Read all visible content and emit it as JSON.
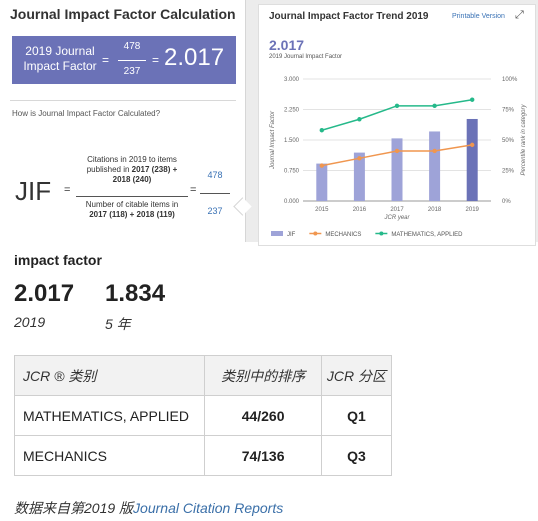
{
  "calc_card": {
    "title": "Journal Impact Factor Calculation",
    "box_label": "2019 Journal Impact Factor",
    "box_numerator": "478",
    "box_denominator": "237",
    "box_result": "2.017",
    "eq_sign": "=",
    "how_text": "How is Journal Impact Factor Calculated?",
    "jif_label": "JIF",
    "fraction_top": {
      "line1": "Citations in 2019 to items",
      "line2_pre": "published in ",
      "line2_bold": "2017 (238) +",
      "line3_bold": "2018 (240)"
    },
    "fraction_bottom": {
      "line1": "Number of citable items in",
      "line2_bold": "2017 (118) + 2018 (119)"
    },
    "side_numerator": "478",
    "side_denominator": "237"
  },
  "trend_card": {
    "title": "Journal Impact Factor Trend 2019",
    "printable": "Printable Version",
    "value": "2.017",
    "subtitle": "2019 Journal Impact Factor",
    "expand_icon": "expand-icon"
  },
  "chart_data": {
    "type": "bar",
    "categories": [
      "2015",
      "2016",
      "2017",
      "2018",
      "2019"
    ],
    "ylabel": "Journal Impact Factor",
    "y2label": "Percentile rank in category",
    "xlabel": "JCR year",
    "ylim": [
      0,
      3.0
    ],
    "y2lim": [
      0,
      100
    ],
    "y_ticks": [
      "0.000",
      "0.750",
      "1.500",
      "2.250",
      "3.000"
    ],
    "y2_ticks": [
      "0%",
      "25%",
      "50%",
      "75%",
      "100%"
    ],
    "grid": true,
    "legend_position": "bottom",
    "series": [
      {
        "name": "JIF",
        "kind": "bar",
        "axis": "left",
        "color": "#9ea3d8",
        "last_color": "#6b72b7",
        "values": [
          0.92,
          1.19,
          1.54,
          1.71,
          2.017
        ]
      },
      {
        "name": "MECHANICS",
        "kind": "line",
        "axis": "right",
        "color": "#f0964f",
        "values": [
          29,
          35,
          41,
          41,
          46
        ]
      },
      {
        "name": "MATHEMATICS, APPLIED",
        "kind": "line",
        "axis": "right",
        "color": "#25b98a",
        "values": [
          58,
          67,
          78,
          78,
          83
        ]
      }
    ]
  },
  "impact": {
    "title": "impact factor",
    "metrics": [
      {
        "value": "2.017",
        "label": "2019"
      },
      {
        "value": "1.834",
        "label": "5 年"
      }
    ]
  },
  "jcr_table": {
    "headers": [
      "JCR ® 类别",
      "类别中的排序",
      "JCR 分区"
    ],
    "rows": [
      [
        "MATHEMATICS, APPLIED",
        "44/260",
        "Q1"
      ],
      [
        "MECHANICS",
        "74/136",
        "Q3"
      ]
    ]
  },
  "source": {
    "prefix": "数据来自第2019 版",
    "link": "Journal Citation Reports"
  },
  "colors": {
    "accent": "#6b72b7",
    "link": "#3a72b5"
  }
}
